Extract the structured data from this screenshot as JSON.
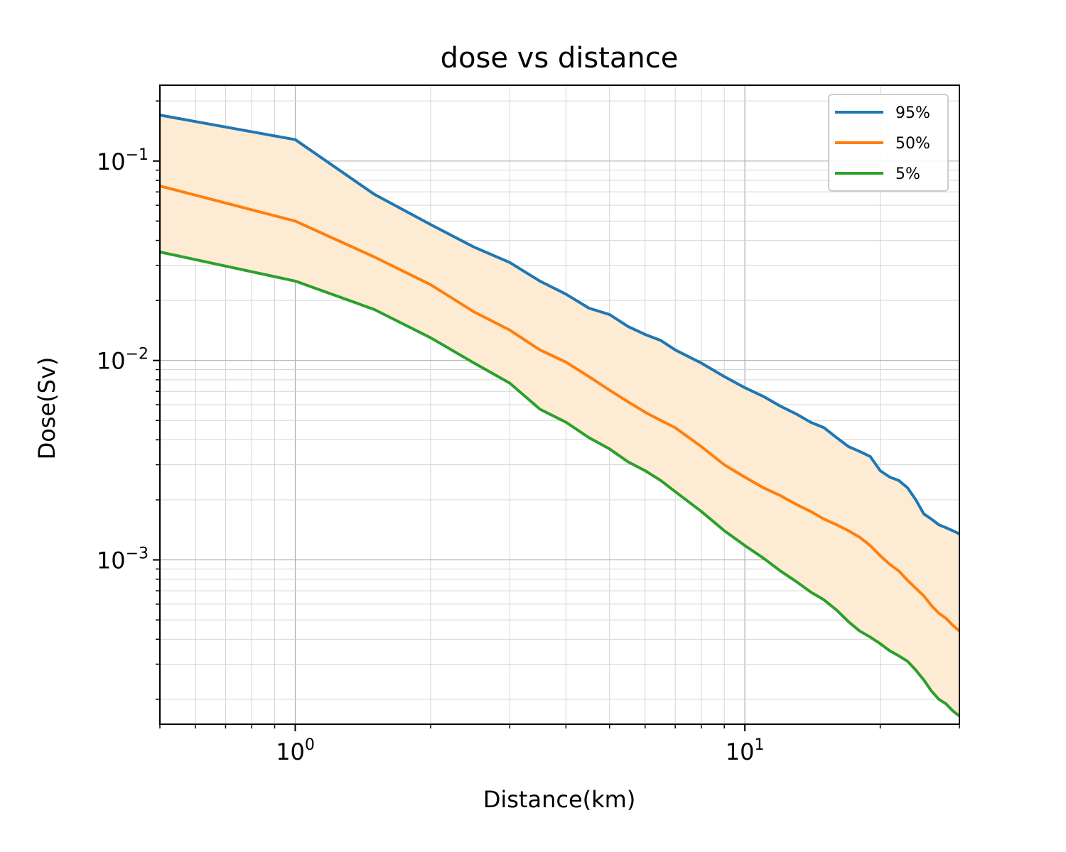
{
  "chart_data": {
    "type": "line",
    "title": "dose vs distance",
    "xlabel": "Distance(km)",
    "ylabel": "Dose(Sv)",
    "xscale": "log",
    "yscale": "log",
    "xlim": [
      0.5,
      30
    ],
    "ylim": [
      0.00015,
      0.24
    ],
    "grid": "major and minor",
    "legend_position": "top-right",
    "x_ticks": [
      {
        "base": "10",
        "exp": "0",
        "value": 1
      },
      {
        "base": "10",
        "exp": "1",
        "value": 10
      }
    ],
    "y_ticks": [
      {
        "base": "10",
        "exp": "−1",
        "value": 0.1
      },
      {
        "base": "10",
        "exp": "−2",
        "value": 0.01
      },
      {
        "base": "10",
        "exp": "−3",
        "value": 0.001
      }
    ],
    "fill_between": {
      "upper": "95%",
      "lower": "5%",
      "color": "#fdebd3"
    },
    "x": [
      0.5,
      1.0,
      1.5,
      2.0,
      2.5,
      3.0,
      3.5,
      4.0,
      4.5,
      5.0,
      5.5,
      6.0,
      6.5,
      7.0,
      8.0,
      9.0,
      10.0,
      11.0,
      12.0,
      13.0,
      14.0,
      15.0,
      16.0,
      17.0,
      18.0,
      19.0,
      20.0,
      21.0,
      22.0,
      23.0,
      24.0,
      25.0,
      26.0,
      27.0,
      28.0,
      29.0,
      30.0
    ],
    "series": [
      {
        "name": "95%",
        "color": "#1f77b4",
        "values": [
          0.17,
          0.128,
          0.068,
          0.048,
          0.037,
          0.031,
          0.025,
          0.0215,
          0.0183,
          0.017,
          0.0148,
          0.0135,
          0.0126,
          0.0113,
          0.0097,
          0.0083,
          0.0073,
          0.0066,
          0.0059,
          0.0054,
          0.0049,
          0.0046,
          0.0041,
          0.0037,
          0.0035,
          0.0033,
          0.0028,
          0.0026,
          0.0025,
          0.0023,
          0.002,
          0.0017,
          0.0016,
          0.0015,
          0.00145,
          0.0014,
          0.00135
        ]
      },
      {
        "name": "50%",
        "color": "#ff7f0e",
        "values": [
          0.075,
          0.05,
          0.033,
          0.024,
          0.0175,
          0.0142,
          0.0113,
          0.0098,
          0.0083,
          0.0071,
          0.0062,
          0.0055,
          0.005,
          0.0046,
          0.0037,
          0.003,
          0.0026,
          0.0023,
          0.0021,
          0.0019,
          0.00175,
          0.0016,
          0.0015,
          0.0014,
          0.0013,
          0.00118,
          0.00105,
          0.00095,
          0.00088,
          0.00079,
          0.00072,
          0.00066,
          0.00059,
          0.00054,
          0.00051,
          0.00047,
          0.00044
        ]
      },
      {
        "name": "5%",
        "color": "#2ca02c",
        "values": [
          0.035,
          0.025,
          0.018,
          0.013,
          0.0097,
          0.0077,
          0.0057,
          0.0049,
          0.0041,
          0.0036,
          0.0031,
          0.0028,
          0.0025,
          0.0022,
          0.00175,
          0.0014,
          0.00118,
          0.00102,
          0.00088,
          0.00078,
          0.00069,
          0.00063,
          0.00056,
          0.00049,
          0.00044,
          0.00041,
          0.00038,
          0.00035,
          0.00033,
          0.00031,
          0.00028,
          0.00025,
          0.00022,
          0.0002,
          0.00019,
          0.000175,
          0.000165
        ]
      }
    ]
  }
}
